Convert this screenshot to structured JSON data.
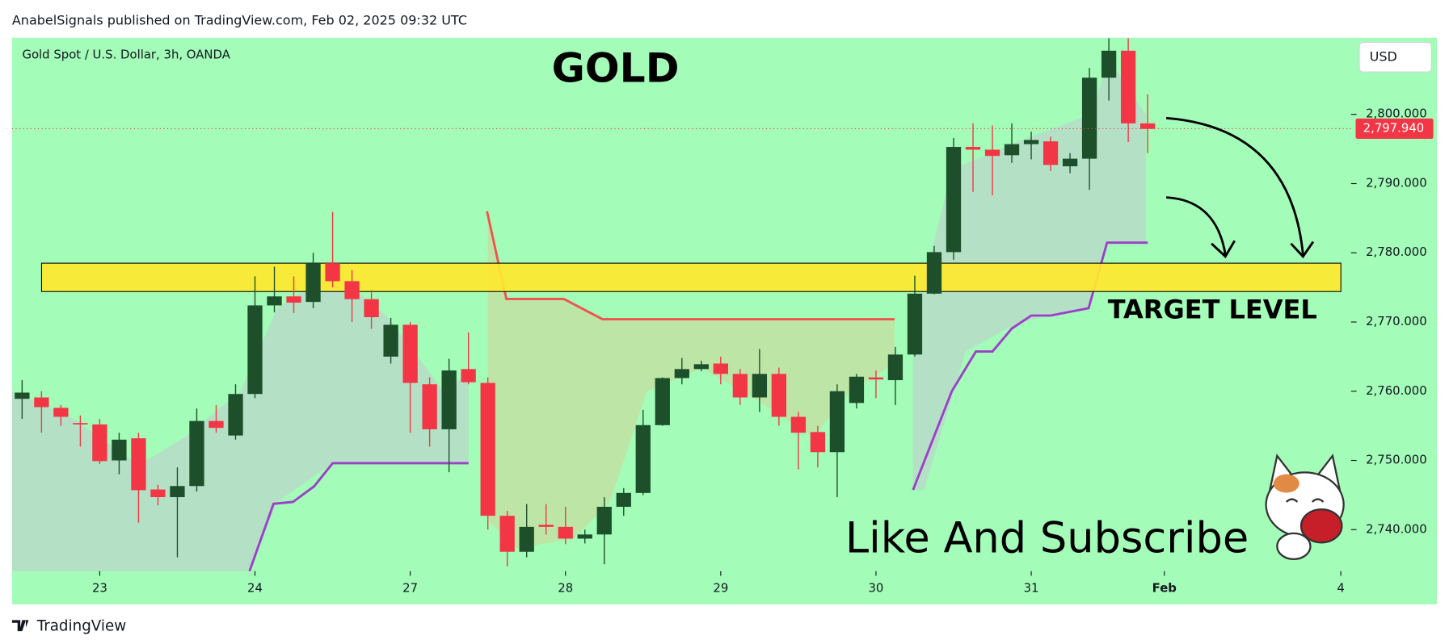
{
  "header": {
    "publisher": "AnabelSignals published on TradingView.com, Feb 02, 2025 09:32 UTC",
    "brand": "TradingView"
  },
  "chart_data": {
    "type": "candlestick",
    "symbol": "Gold Spot / U.S. Dollar, 3h, OANDA",
    "title": "GOLD",
    "currency": "USD",
    "annotations": [
      "TARGET LEVEL",
      "Like And Subscribe"
    ],
    "x": [
      0,
      1,
      2,
      3,
      4,
      5,
      6,
      7,
      8,
      9,
      10,
      11,
      12,
      13,
      14,
      15,
      16,
      17,
      18,
      19,
      20,
      21,
      22,
      23,
      24,
      25,
      26,
      27,
      28,
      29,
      30,
      31,
      32,
      33,
      34,
      35,
      36,
      37,
      38,
      39,
      40,
      41,
      42,
      43,
      44,
      45,
      46,
      47,
      48,
      49,
      50,
      51,
      52,
      53,
      54,
      55,
      56,
      57,
      58
    ],
    "open": [
      2758.9,
      2759.1,
      2757.6,
      2755.4,
      2755.2,
      2750,
      2753.2,
      2745.8,
      2744.7,
      2746.3,
      2755.7,
      2753.6,
      2759.6,
      2772.4,
      2773.7,
      2772.9,
      2778.5,
      2775.9,
      2773.3,
      2765,
      2769.6,
      2761,
      2754.5,
      2763.2,
      2761.2,
      2742,
      2736.8,
      2740.7,
      2740.4,
      2738.7,
      2739.3,
      2743.3,
      2745.3,
      2755.1,
      2761.9,
      2763.2,
      2764,
      2762.5,
      2759.1,
      2762.5,
      2756.3,
      2754.1,
      2751.2,
      2758.3,
      2762,
      2761.6,
      2765.3,
      2774.1,
      2780.1,
      2795.3,
      2794.9,
      2794.1,
      2795.7,
      2796.1,
      2792.5,
      2793.6,
      2805.3,
      2809.2,
      2798.7
    ],
    "high": [
      2761.6,
      2760,
      2758,
      2756.5,
      2756,
      2754,
      2754,
      2746.5,
      2749,
      2757.5,
      2758,
      2761,
      2776.6,
      2778,
      2776.6,
      2780,
      2785.9,
      2777.5,
      2774.6,
      2770.6,
      2770,
      2762,
      2764.7,
      2768.5,
      2762,
      2742.7,
      2743.7,
      2743.7,
      2743.3,
      2740,
      2744.7,
      2746,
      2757.3,
      2762,
      2764.8,
      2764.4,
      2765,
      2763.2,
      2766.1,
      2763.4,
      2757,
      2755,
      2761,
      2762.5,
      2763,
      2766.4,
      2776.7,
      2781,
      2796.6,
      2798.7,
      2798.4,
      2798.7,
      2797.5,
      2796.8,
      2794.4,
      2806.7,
      2811,
      2811,
      2802.9
    ],
    "low": [
      2756,
      2754,
      2755,
      2752,
      2749.5,
      2748,
      2741,
      2743.5,
      2736,
      2745.5,
      2754,
      2753,
      2759,
      2771.4,
      2771.3,
      2772,
      2775,
      2770,
      2769,
      2764,
      2754,
      2752,
      2748.3,
      2761,
      2740,
      2734.7,
      2736,
      2739.3,
      2737.9,
      2738,
      2735,
      2742,
      2745,
      2755,
      2761,
      2762.9,
      2761,
      2758,
      2757,
      2755,
      2748.7,
      2749,
      2744.7,
      2757.5,
      2759,
      2758,
      2765,
      2774,
      2779,
      2788.8,
      2788.3,
      2793,
      2793.5,
      2791.8,
      2791.5,
      2789.1,
      2802,
      2796,
      2794.4
    ],
    "close": [
      2759.8,
      2757.7,
      2756.3,
      2755.2,
      2749.9,
      2753,
      2745.7,
      2744.7,
      2746.3,
      2755.7,
      2754.7,
      2759.6,
      2772.4,
      2773.7,
      2772.8,
      2778.5,
      2775.9,
      2773.3,
      2770.7,
      2769.6,
      2761.2,
      2754.5,
      2763,
      2761.3,
      2742,
      2736.8,
      2740.4,
      2740.4,
      2738.7,
      2739.3,
      2743.3,
      2745.3,
      2755.1,
      2761.9,
      2763.2,
      2763.9,
      2762.5,
      2759.1,
      2762.5,
      2756.3,
      2754,
      2751.2,
      2760,
      2762.1,
      2761.7,
      2765.3,
      2774.1,
      2780.1,
      2795.3,
      2794.9,
      2794,
      2795.7,
      2796.3,
      2792.7,
      2793.6,
      2805.3,
      2809.2,
      2798.7,
      2797.9
    ],
    "up_color": "#1d4f2b",
    "down_color": "#f23645",
    "zone": [
      2774.4,
      2778.5
    ],
    "last_price": {
      "value": 2797.94,
      "label": "2,797.940"
    },
    "xlim": [
      -0.52,
      68.48
    ],
    "xticks": [
      {
        "value": 4,
        "label": "23"
      },
      {
        "value": 12,
        "label": "24"
      },
      {
        "value": 20,
        "label": "27"
      },
      {
        "value": 28,
        "label": "28"
      },
      {
        "value": 36,
        "label": "29"
      },
      {
        "value": 44,
        "label": "30"
      },
      {
        "value": 52,
        "label": "31"
      },
      {
        "value": 58.86,
        "label": "Feb"
      },
      {
        "value": 67.95,
        "label": "4"
      }
    ],
    "ylim": [
      2734,
      2811.07
    ],
    "yticks": [
      {
        "value": 2740,
        "label": "2,740.000"
      },
      {
        "value": 2750,
        "label": "2,750.000"
      },
      {
        "value": 2760,
        "label": "2,760.000"
      },
      {
        "value": 2770,
        "label": "2,770.000"
      },
      {
        "value": 2780,
        "label": "2,780.000"
      },
      {
        "value": 2790,
        "label": "2,790.000"
      },
      {
        "value": 2800,
        "label": "2,800.000"
      }
    ]
  }
}
